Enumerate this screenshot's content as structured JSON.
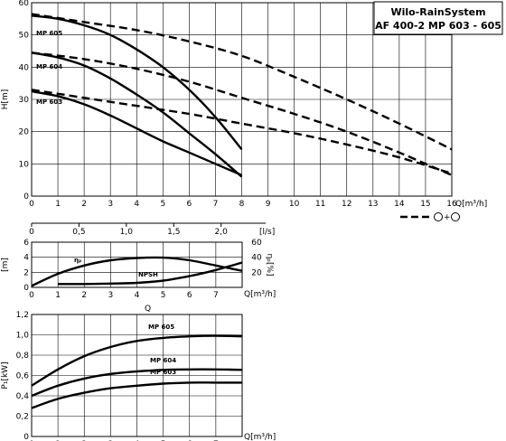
{
  "title_box": {
    "line1": "Wilo-RainSystem",
    "line2": "AF 400-2   MP 603 - 605"
  },
  "legend_label": "+",
  "chart_data": [
    {
      "type": "line",
      "name_id": "head",
      "ylabel": "H[m]",
      "xlabel": "Q[m³/h]",
      "xlim": [
        0,
        16
      ],
      "ylim": [
        0,
        60
      ],
      "xticks": [
        0,
        1,
        2,
        3,
        4,
        5,
        6,
        7,
        8,
        9,
        10,
        11,
        12,
        13,
        14,
        15,
        16
      ],
      "yticks": [
        0,
        10,
        20,
        30,
        40,
        50,
        60
      ],
      "grid": true,
      "series": [
        {
          "name": "MP 605",
          "style": "solid",
          "points": [
            [
              0,
              56
            ],
            [
              1,
              55
            ],
            [
              2,
              53
            ],
            [
              3,
              50
            ],
            [
              4,
              45.5
            ],
            [
              5,
              40
            ],
            [
              6,
              33
            ],
            [
              7,
              24.5
            ],
            [
              8,
              14.5
            ]
          ]
        },
        {
          "name": "MP 604",
          "style": "solid",
          "points": [
            [
              0,
              44.5
            ],
            [
              1,
              43
            ],
            [
              2,
              40.5
            ],
            [
              3,
              36.5
            ],
            [
              4,
              31.5
            ],
            [
              5,
              26
            ],
            [
              6,
              19.5
            ],
            [
              7,
              13
            ],
            [
              8,
              6
            ]
          ]
        },
        {
          "name": "MP 603",
          "style": "solid",
          "points": [
            [
              0,
              32.5
            ],
            [
              1,
              31
            ],
            [
              2,
              28.5
            ],
            [
              3,
              25
            ],
            [
              4,
              21
            ],
            [
              5,
              17
            ],
            [
              6,
              13.5
            ],
            [
              7,
              10
            ],
            [
              8,
              6.5
            ]
          ]
        },
        {
          "name": "",
          "style": "dash",
          "points": [
            [
              0,
              56.5
            ],
            [
              2,
              54
            ],
            [
              4,
              51.5
            ],
            [
              6,
              48
            ],
            [
              8,
              43.5
            ],
            [
              10,
              37
            ],
            [
              12,
              30
            ],
            [
              14,
              22.5
            ],
            [
              16,
              14.5
            ]
          ]
        },
        {
          "name": "",
          "style": "dash",
          "points": [
            [
              0,
              44.5
            ],
            [
              2,
              42.5
            ],
            [
              4,
              39.5
            ],
            [
              6,
              35.5
            ],
            [
              8,
              30.5
            ],
            [
              10,
              25.5
            ],
            [
              12,
              20
            ],
            [
              14,
              13.5
            ],
            [
              16,
              6.5
            ]
          ]
        },
        {
          "name": "",
          "style": "dash",
          "points": [
            [
              0,
              33
            ],
            [
              2,
              30.5
            ],
            [
              4,
              28
            ],
            [
              6,
              25.5
            ],
            [
              8,
              22.5
            ],
            [
              10,
              19.5
            ],
            [
              12,
              16
            ],
            [
              14,
              12
            ],
            [
              16,
              7
            ]
          ]
        }
      ]
    },
    {
      "type": "line",
      "name_id": "npsh",
      "ylabel": "[m]",
      "y2label": "ηₚ[%]",
      "xlabel": "Q[m³/h]",
      "x2label": "[l/s]",
      "xlim": [
        0,
        8
      ],
      "ylim": [
        0,
        6
      ],
      "xticks": [
        0,
        1,
        2,
        3,
        4,
        5,
        6,
        7
      ],
      "yticks": [
        0,
        2,
        4,
        6
      ],
      "y2ticks": [
        20,
        40,
        60
      ],
      "x2ticks": [
        "0",
        "0,5",
        "1,0",
        "1,5",
        "2,0"
      ],
      "series": [
        {
          "name": "ηₚ",
          "style": "solid",
          "points": [
            [
              0,
              0.2
            ],
            [
              1,
              1.8
            ],
            [
              2,
              2.9
            ],
            [
              3,
              3.6
            ],
            [
              4,
              3.9
            ],
            [
              5,
              3.95
            ],
            [
              6,
              3.6
            ],
            [
              7,
              2.9
            ],
            [
              8,
              2.2
            ]
          ]
        },
        {
          "name": "NPSH",
          "style": "solid",
          "points": [
            [
              1,
              0.45
            ],
            [
              2,
              0.45
            ],
            [
              3,
              0.5
            ],
            [
              4,
              0.6
            ],
            [
              5,
              0.9
            ],
            [
              6,
              1.5
            ],
            [
              7,
              2.3
            ],
            [
              8,
              3.3
            ]
          ]
        }
      ]
    },
    {
      "type": "line",
      "name_id": "power",
      "ylabel": "P₁[kW]",
      "xlabel": "Q[m³/h]",
      "xlim": [
        0,
        8
      ],
      "ylim": [
        0,
        1.2
      ],
      "xticks": [
        0,
        1,
        2,
        3,
        4,
        5,
        6,
        7
      ],
      "yticks": [
        "0",
        "0,2",
        "0,4",
        "0,6",
        "0,8",
        "1,0",
        "1,2"
      ],
      "series": [
        {
          "name": "MP 605",
          "style": "solid",
          "points": [
            [
              0,
              0.5
            ],
            [
              1,
              0.66
            ],
            [
              2,
              0.79
            ],
            [
              3,
              0.88
            ],
            [
              4,
              0.94
            ],
            [
              5,
              0.97
            ],
            [
              6,
              0.985
            ],
            [
              7,
              0.99
            ],
            [
              8,
              0.985
            ]
          ]
        },
        {
          "name": "MP 604",
          "style": "solid",
          "points": [
            [
              0,
              0.4
            ],
            [
              1,
              0.5
            ],
            [
              2,
              0.57
            ],
            [
              3,
              0.615
            ],
            [
              4,
              0.64
            ],
            [
              5,
              0.655
            ],
            [
              6,
              0.66
            ],
            [
              7,
              0.66
            ],
            [
              8,
              0.655
            ]
          ]
        },
        {
          "name": "MP 603",
          "style": "solid",
          "points": [
            [
              0,
              0.28
            ],
            [
              1,
              0.37
            ],
            [
              2,
              0.43
            ],
            [
              3,
              0.475
            ],
            [
              4,
              0.5
            ],
            [
              5,
              0.52
            ],
            [
              6,
              0.53
            ],
            [
              7,
              0.53
            ],
            [
              8,
              0.53
            ]
          ]
        }
      ]
    }
  ],
  "q_label_mid": "Q"
}
